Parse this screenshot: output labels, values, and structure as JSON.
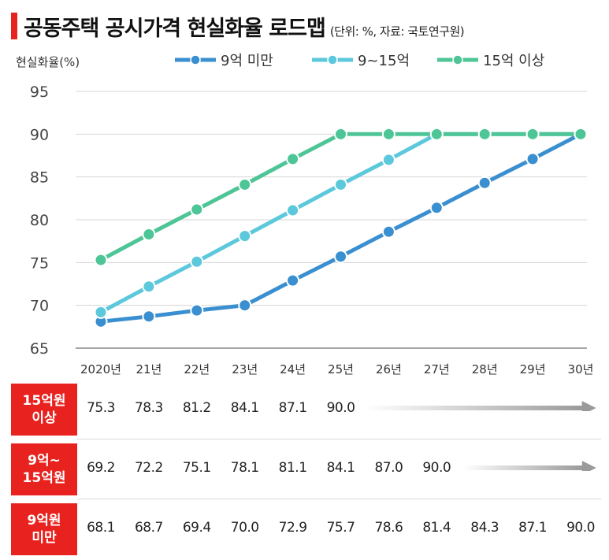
{
  "title": {
    "main": "공동주택 공시가격 현실화율 로드맵",
    "sub": "(단위: %, 자료: 국토연구원)"
  },
  "colors": {
    "accent": "#e8231f",
    "under9": "#3a8fd0",
    "mid": "#5cc8dc",
    "over15": "#4ec596"
  },
  "chart_data": {
    "type": "line",
    "title": "공동주택 공시가격 현실화율 로드맵",
    "ylabel": "현실화율(%)",
    "ylim": [
      65,
      95
    ],
    "yticks": [
      65,
      70,
      75,
      80,
      85,
      90,
      95
    ],
    "grid": true,
    "legend_position": "top",
    "categories": [
      "2020년",
      "21년",
      "22년",
      "23년",
      "24년",
      "25년",
      "26년",
      "27년",
      "28년",
      "29년",
      "30년"
    ],
    "series": [
      {
        "name": "9억 미만",
        "color": "#3a8fd0",
        "values": [
          68.1,
          68.7,
          69.4,
          70.0,
          72.9,
          75.7,
          78.6,
          81.4,
          84.3,
          87.1,
          90.0
        ]
      },
      {
        "name": "9~15억",
        "color": "#5cc8dc",
        "values": [
          69.2,
          72.2,
          75.1,
          78.1,
          81.1,
          84.1,
          87.0,
          90.0,
          90.0,
          90.0,
          90.0
        ]
      },
      {
        "name": "15억 이상",
        "color": "#4ec596",
        "values": [
          75.3,
          78.3,
          81.2,
          84.1,
          87.1,
          90.0,
          90.0,
          90.0,
          90.0,
          90.0,
          90.0
        ]
      }
    ]
  },
  "table": {
    "rows": [
      {
        "label": "15억원\n이상",
        "values": [
          "75.3",
          "78.3",
          "81.2",
          "84.1",
          "87.1",
          "90.0"
        ]
      },
      {
        "label": "9억~\n15억원",
        "values": [
          "69.2",
          "72.2",
          "75.1",
          "78.1",
          "81.1",
          "84.1",
          "87.0",
          "90.0"
        ]
      },
      {
        "label": "9억원\n미만",
        "values": [
          "68.1",
          "68.7",
          "69.4",
          "70.0",
          "72.9",
          "75.7",
          "78.6",
          "81.4",
          "84.3",
          "87.1",
          "90.0"
        ]
      }
    ]
  }
}
